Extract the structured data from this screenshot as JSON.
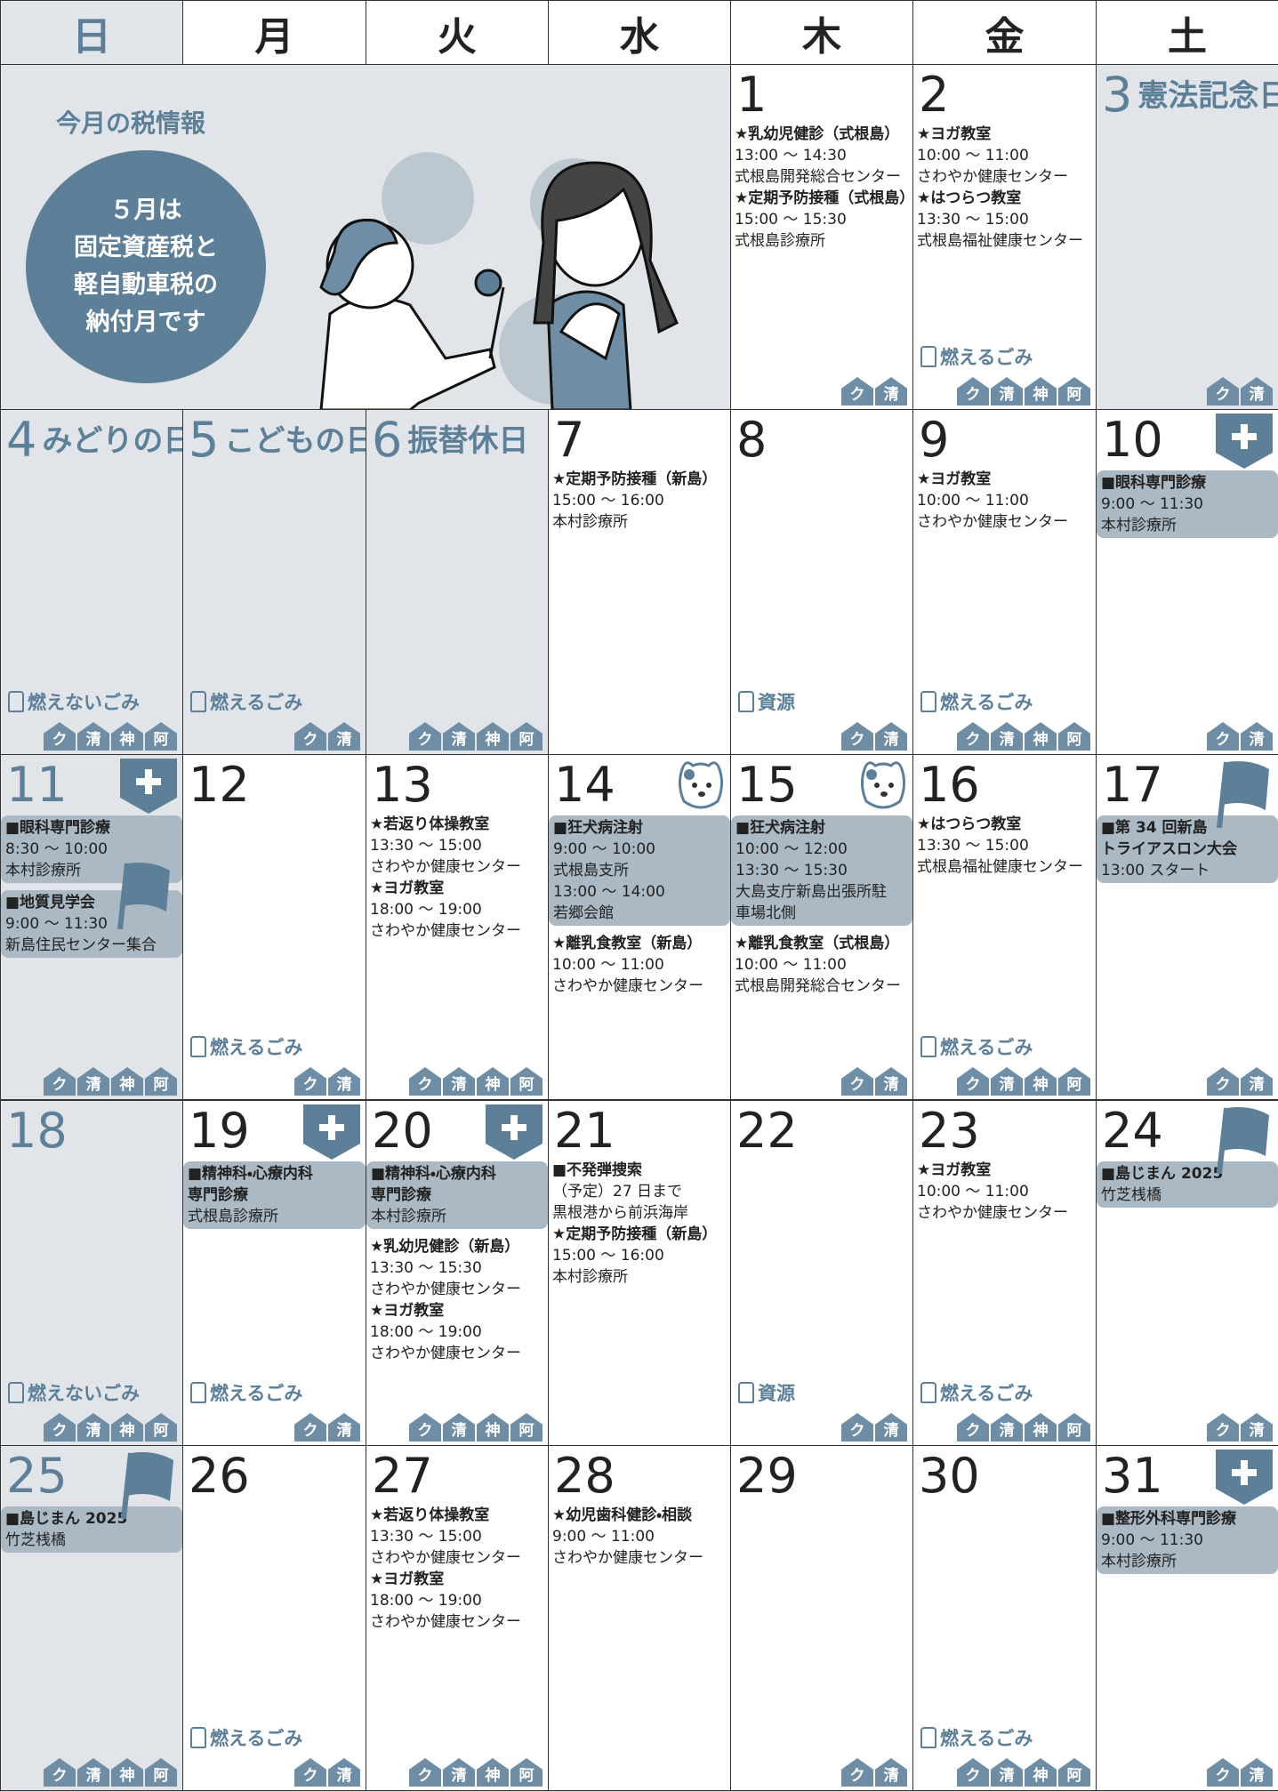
{
  "headers": [
    "日",
    "月",
    "火",
    "水",
    "木",
    "金",
    "土"
  ],
  "tax": {
    "title": "今月の税情報",
    "lines": [
      "５月は",
      "固定資産税と",
      "軽自動車税の",
      "納付月です"
    ]
  },
  "days": [
    {
      "date": "1",
      "events": [
        {
          "title": "★乳幼児健診（式根島）",
          "lines": [
            "13:00 〜 14:30",
            "式根島開発総合センター"
          ]
        },
        {
          "title": "★定期予防接種（式根島）",
          "lines": [
            "15:00 〜 15:30",
            "式根島診療所"
          ]
        }
      ],
      "areas": [
        "ク",
        "清"
      ]
    },
    {
      "date": "2",
      "events": [
        {
          "title": "★ヨガ教室",
          "lines": [
            "10:00 〜 11:00",
            "さわやか健康センター"
          ]
        },
        {
          "title": "★はつらつ教室",
          "lines": [
            "13:30 〜 15:00",
            "式根島福祉健康センター"
          ]
        }
      ],
      "garbage": "燃えるごみ",
      "areas": [
        "ク",
        "清",
        "神",
        "阿"
      ]
    },
    {
      "date": "3",
      "holiday": "憲法記念日",
      "events": [],
      "areas": [
        "ク",
        "清"
      ]
    },
    {
      "date": "4",
      "holiday": "みどりの日",
      "events": [],
      "garbage": "燃えないごみ",
      "areas": [
        "ク",
        "清",
        "神",
        "阿"
      ]
    },
    {
      "date": "5",
      "holiday": "こどもの日",
      "events": [],
      "garbage": "燃えるごみ",
      "areas": [
        "ク",
        "清"
      ]
    },
    {
      "date": "6",
      "holiday": "振替休日",
      "events": [],
      "areas": [
        "ク",
        "清",
        "神",
        "阿"
      ]
    },
    {
      "date": "7",
      "events": [
        {
          "title": "★定期予防接種（新島）",
          "lines": [
            "15:00 〜 16:00",
            "本村診療所"
          ]
        }
      ],
      "areas": []
    },
    {
      "date": "8",
      "events": [],
      "garbage": "資源",
      "areas": [
        "ク",
        "清"
      ]
    },
    {
      "date": "9",
      "events": [
        {
          "title": "★ヨガ教室",
          "lines": [
            "10:00 〜 11:00",
            "さわやか健康センター"
          ]
        }
      ],
      "garbage": "燃えるごみ",
      "areas": [
        "ク",
        "清",
        "神",
        "阿"
      ]
    },
    {
      "date": "10",
      "events": [
        {
          "title": "■眼科専門診療",
          "lines": [
            "9:00 〜 11:30",
            "本村診療所"
          ],
          "boxed": true,
          "icon": "plus"
        }
      ],
      "areas": [
        "ク",
        "清"
      ]
    },
    {
      "date": "11",
      "events": [
        {
          "title": "■眼科専門診療",
          "lines": [
            "8:30 〜 10:00",
            "本村診療所"
          ],
          "boxed": true,
          "icon": "plus"
        },
        {
          "title": "■地質見学会",
          "lines": [
            "9:00 〜 11:30",
            "新島住民センター集合"
          ],
          "boxed": true,
          "icon": "flag"
        }
      ],
      "areas": [
        "ク",
        "清",
        "神",
        "阿"
      ]
    },
    {
      "date": "12",
      "events": [],
      "garbage": "燃えるごみ",
      "areas": [
        "ク",
        "清"
      ]
    },
    {
      "date": "13",
      "events": [
        {
          "title": "★若返り体操教室",
          "lines": [
            "13:30 〜 15:00",
            "さわやか健康センター"
          ]
        },
        {
          "title": "★ヨガ教室",
          "lines": [
            "18:00 〜 19:00",
            "さわやか健康センター"
          ]
        }
      ],
      "areas": [
        "ク",
        "清",
        "神",
        "阿"
      ]
    },
    {
      "date": "14",
      "events": [
        {
          "title": "■狂犬病注射",
          "lines": [
            "9:00 〜 10:00",
            "式根島支所",
            "13:00 〜 14:00",
            "若郷会館"
          ],
          "boxed": true,
          "icon": "dog"
        },
        {
          "title": "★離乳食教室（新島）",
          "lines": [
            "10:00 〜 11:00",
            "さわやか健康センター"
          ]
        }
      ],
      "areas": []
    },
    {
      "date": "15",
      "events": [
        {
          "title": "■狂犬病注射",
          "lines": [
            "10:00 〜 12:00",
            "13:30 〜 15:30",
            "大島支庁新島出張所駐",
            "車場北側"
          ],
          "boxed": true,
          "icon": "dog"
        },
        {
          "title": "★離乳食教室（式根島）",
          "lines": [
            "10:00 〜 11:00",
            "式根島開発総合センター"
          ]
        }
      ],
      "areas": [
        "ク",
        "清"
      ]
    },
    {
      "date": "16",
      "events": [
        {
          "title": "★はつらつ教室",
          "lines": [
            "13:30 〜 15:00",
            "式根島福祉健康センター"
          ]
        }
      ],
      "garbage": "燃えるごみ",
      "areas": [
        "ク",
        "清",
        "神",
        "阿"
      ]
    },
    {
      "date": "17",
      "events": [
        {
          "title": [
            "■第 34 回新島",
            "トライアスロン大会"
          ],
          "lines": [
            "13:00 スタート"
          ],
          "boxed": true,
          "icon": "flag"
        }
      ],
      "areas": [
        "ク",
        "清"
      ]
    },
    {
      "date": "18",
      "events": [],
      "garbage": "燃えないごみ",
      "areas": [
        "ク",
        "清",
        "神",
        "阿"
      ]
    },
    {
      "date": "19",
      "events": [
        {
          "title": [
            "■精神科・心療内科",
            "専門診療"
          ],
          "lines": [
            "式根島診療所"
          ],
          "boxed": true,
          "icon": "plus"
        }
      ],
      "garbage": "燃えるごみ",
      "areas": [
        "ク",
        "清"
      ]
    },
    {
      "date": "20",
      "events": [
        {
          "title": [
            "■精神科・心療内科",
            "専門診療"
          ],
          "lines": [
            "本村診療所"
          ],
          "boxed": true,
          "icon": "plus"
        },
        {
          "title": "★乳幼児健診（新島）",
          "lines": [
            "13:30 〜 15:30",
            "さわやか健康センター"
          ]
        },
        {
          "title": "★ヨガ教室",
          "lines": [
            "18:00 〜 19:00",
            "さわやか健康センター"
          ]
        }
      ],
      "areas": [
        "ク",
        "清",
        "神",
        "阿"
      ]
    },
    {
      "date": "21",
      "events": [
        {
          "title": "■不発弾捜索",
          "lines": [
            "（予定）27 日まで",
            "黒根港から前浜海岸"
          ]
        },
        {
          "title": "★定期予防接種（新島）",
          "lines": [
            "15:00 〜 16:00",
            "本村診療所"
          ]
        }
      ],
      "areas": []
    },
    {
      "date": "22",
      "events": [],
      "garbage": "資源",
      "areas": [
        "ク",
        "清"
      ]
    },
    {
      "date": "23",
      "events": [
        {
          "title": "★ヨガ教室",
          "lines": [
            "10:00 〜 11:00",
            "さわやか健康センター"
          ]
        }
      ],
      "garbage": "燃えるごみ",
      "areas": [
        "ク",
        "清",
        "神",
        "阿"
      ]
    },
    {
      "date": "24",
      "events": [
        {
          "title": "■島じまん 2025",
          "lines": [
            "竹芝桟橋"
          ],
          "boxed": true,
          "icon": "flag"
        }
      ],
      "areas": [
        "ク",
        "清"
      ]
    },
    {
      "date": "25",
      "events": [
        {
          "title": "■島じまん 2025",
          "lines": [
            "竹芝桟橋"
          ],
          "boxed": true,
          "icon": "flag"
        }
      ],
      "areas": [
        "ク",
        "清",
        "神",
        "阿"
      ]
    },
    {
      "date": "26",
      "events": [],
      "garbage": "燃えるごみ",
      "areas": [
        "ク",
        "清"
      ]
    },
    {
      "date": "27",
      "events": [
        {
          "title": "★若返り体操教室",
          "lines": [
            "13:30 〜 15:00",
            "さわやか健康センター"
          ]
        },
        {
          "title": "★ヨガ教室",
          "lines": [
            "18:00 〜 19:00",
            "さわやか健康センター"
          ]
        }
      ],
      "areas": [
        "ク",
        "清",
        "神",
        "阿"
      ]
    },
    {
      "date": "28",
      "events": [
        {
          "title": "★幼児歯科健診・相談",
          "lines": [
            "9:00 〜 11:00",
            "さわやか健康センター"
          ]
        }
      ],
      "areas": []
    },
    {
      "date": "29",
      "events": [],
      "areas": [
        "ク",
        "清"
      ]
    },
    {
      "date": "30",
      "events": [],
      "garbage": "燃えるごみ",
      "areas": [
        "ク",
        "清",
        "神",
        "阿"
      ]
    },
    {
      "date": "31",
      "events": [
        {
          "title": "■整形外科専門診療",
          "lines": [
            "9:00 〜 11:30",
            "本村診療所"
          ],
          "boxed": true,
          "icon": "plus"
        }
      ],
      "areas": [
        "ク",
        "清"
      ]
    }
  ]
}
